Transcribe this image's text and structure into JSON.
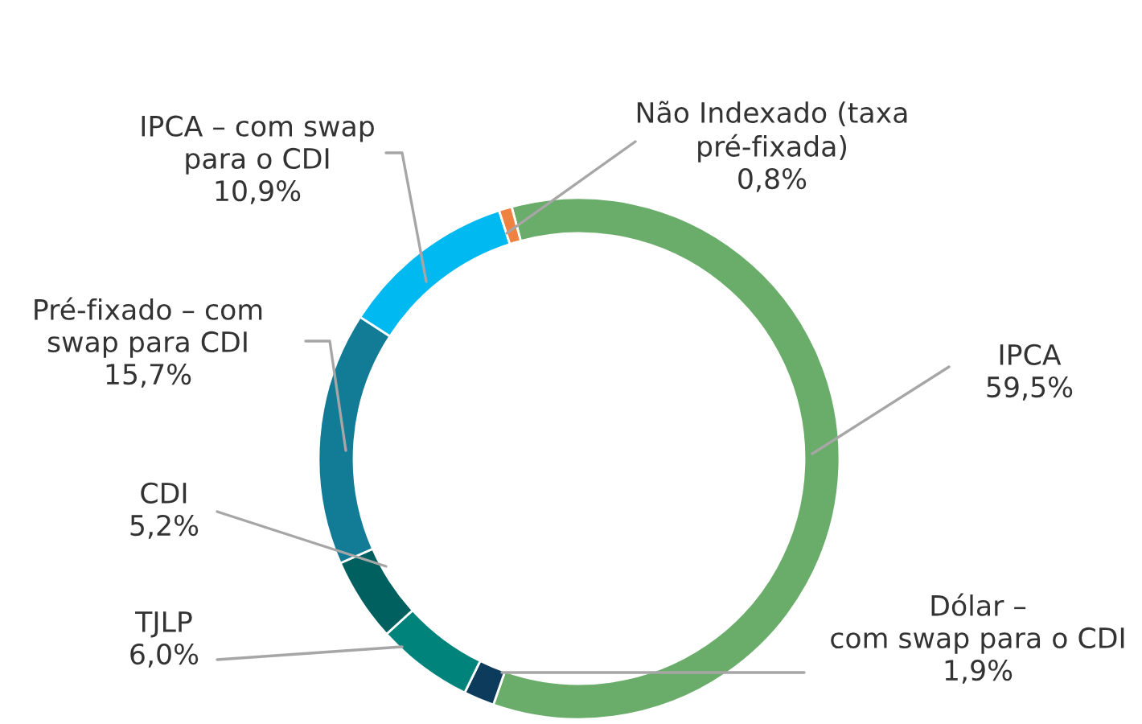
{
  "chart_data": {
    "type": "donut",
    "categories": [
      "IPCA",
      "Dólar –\ncom swap para o CDI",
      "TJLP",
      "CDI",
      "Pré-fixado – com\nswap para CDI",
      "IPCA – com swap\npara o CDI",
      "Não Indexado (taxa\npré-fixada)"
    ],
    "values": [
      59.5,
      1.9,
      6.0,
      5.2,
      15.7,
      10.9,
      0.8
    ],
    "value_labels": [
      "59,5%",
      "1,9%",
      "6,0%",
      "5,2%",
      "15,7%",
      "10,9%",
      "0,8%"
    ],
    "colors": [
      "#6aad6a",
      "#0d3b5c",
      "#00837a",
      "#005f5f",
      "#127b96",
      "#00b9f1",
      "#ef8240"
    ],
    "legend": false
  }
}
